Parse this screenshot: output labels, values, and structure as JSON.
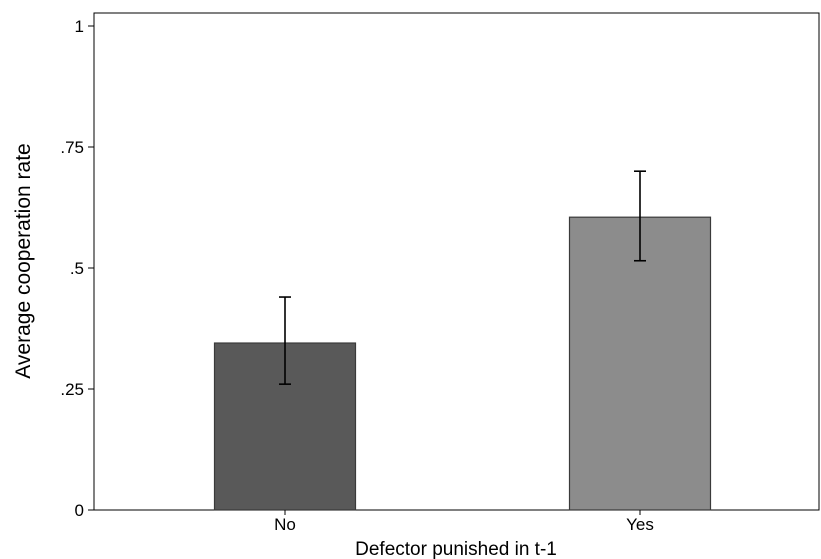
{
  "chart_data": {
    "type": "bar",
    "categories": [
      "No",
      "Yes"
    ],
    "values": [
      0.345,
      0.605
    ],
    "error_bars": [
      {
        "low": 0.26,
        "high": 0.44
      },
      {
        "low": 0.515,
        "high": 0.7
      }
    ],
    "bar_colors": [
      "#595959",
      "#8c8c8c"
    ],
    "xlabel": "Defector punished in t-1",
    "ylabel": "Average cooperation rate",
    "ylim": [
      0,
      1
    ],
    "yticks": [
      0,
      0.25,
      0.5,
      0.75,
      1
    ],
    "ytick_labels": [
      "0",
      ".25",
      ".5",
      ".75",
      "1"
    ],
    "grid": false,
    "legend": "none"
  }
}
